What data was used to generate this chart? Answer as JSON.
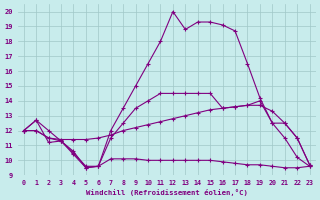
{
  "background_color": "#c8ecec",
  "grid_color": "#a0c8c8",
  "line_color": "#800080",
  "xlabel": "Windchill (Refroidissement éolien,°C)",
  "xlim": [
    -0.5,
    23.5
  ],
  "ylim": [
    9,
    20.5
  ],
  "yticks": [
    9,
    10,
    11,
    12,
    13,
    14,
    15,
    16,
    17,
    18,
    19,
    20
  ],
  "xticks": [
    0,
    1,
    2,
    3,
    4,
    5,
    6,
    7,
    8,
    9,
    10,
    11,
    12,
    13,
    14,
    15,
    16,
    17,
    18,
    19,
    20,
    21,
    22,
    23
  ],
  "line1_x": [
    0,
    1,
    2,
    3,
    4,
    5,
    6,
    7,
    8,
    9,
    10,
    11,
    12,
    13,
    14,
    15,
    16,
    17,
    18,
    19,
    20,
    21,
    22,
    23
  ],
  "line1_y": [
    12.0,
    12.7,
    11.2,
    11.3,
    10.6,
    9.5,
    9.6,
    10.1,
    10.1,
    10.1,
    10.0,
    10.0,
    10.0,
    10.0,
    10.0,
    10.0,
    9.9,
    9.8,
    9.7,
    9.7,
    9.6,
    9.5,
    9.5,
    9.6
  ],
  "line2_x": [
    0,
    1,
    2,
    3,
    4,
    5,
    6,
    7,
    8,
    9,
    10,
    11,
    12,
    13,
    14,
    15,
    16,
    17,
    18,
    19,
    20,
    21,
    22,
    23
  ],
  "line2_y": [
    12.0,
    12.0,
    11.5,
    11.4,
    11.4,
    11.4,
    11.5,
    11.7,
    12.0,
    12.2,
    12.4,
    12.6,
    12.8,
    13.0,
    13.2,
    13.4,
    13.5,
    13.6,
    13.7,
    13.7,
    13.3,
    12.5,
    11.5,
    9.7
  ],
  "line3_x": [
    0,
    1,
    2,
    3,
    4,
    5,
    6,
    7,
    8,
    9,
    10,
    11,
    12,
    13,
    14,
    15,
    16,
    17,
    18,
    19,
    20,
    21,
    22,
    23
  ],
  "line3_y": [
    12.0,
    12.0,
    11.5,
    11.3,
    10.5,
    9.6,
    9.6,
    11.5,
    12.5,
    13.5,
    14.0,
    14.5,
    14.5,
    14.5,
    14.5,
    14.5,
    13.5,
    13.6,
    13.7,
    14.0,
    12.5,
    12.5,
    11.5,
    9.7
  ],
  "line4_x": [
    0,
    1,
    2,
    3,
    4,
    5,
    6,
    7,
    8,
    9,
    10,
    11,
    12,
    13,
    14,
    15,
    16,
    17,
    18,
    19,
    20,
    21,
    22,
    23
  ],
  "line4_y": [
    12.0,
    12.7,
    12.0,
    11.3,
    10.4,
    9.5,
    9.6,
    12.0,
    13.5,
    15.0,
    16.5,
    18.0,
    20.0,
    18.8,
    19.3,
    19.3,
    19.1,
    18.7,
    16.5,
    14.2,
    12.5,
    11.5,
    10.2,
    9.6
  ]
}
